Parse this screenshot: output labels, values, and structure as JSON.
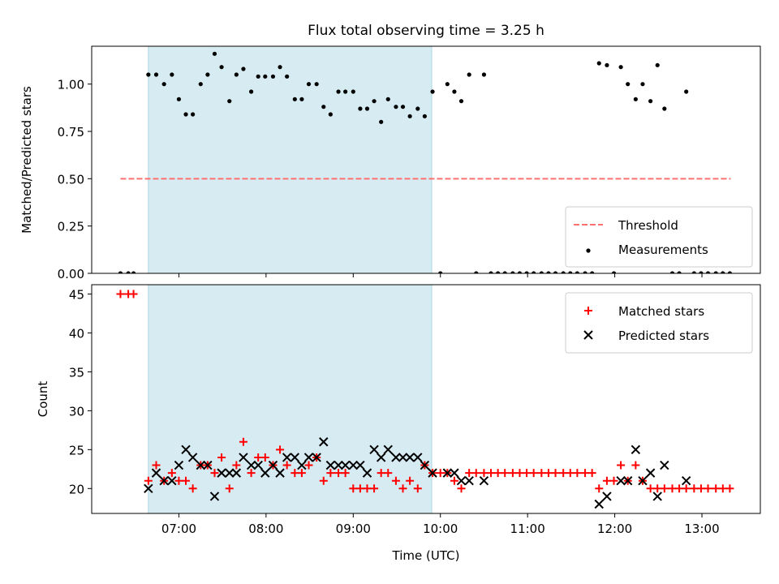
{
  "chart_data": {
    "title": "Flux total observing time = 3.25 h",
    "xlabel": "Time (UTC)",
    "x_tick_labels": [
      "07:00",
      "08:00",
      "09:00",
      "10:00",
      "11:00",
      "12:00",
      "13:00"
    ],
    "x_ticks": [
      7,
      8,
      9,
      10,
      11,
      12,
      13
    ],
    "xlim": [
      6.0,
      13.67
    ],
    "shaded_interval": [
      6.65,
      9.9
    ],
    "panels": [
      {
        "type": "scatter",
        "ylabel": "Matched/Predicted stars",
        "ylim": [
          0,
          1.2
        ],
        "y_ticks": [
          0.0,
          0.25,
          0.5,
          0.75,
          1.0
        ],
        "y_tick_labels": [
          "0.00",
          "0.25",
          "0.50",
          "0.75",
          "1.00"
        ],
        "legend_position": "lower-right",
        "threshold": {
          "name": "Threshold",
          "value": 0.5,
          "x_range": [
            6.33,
            13.33
          ],
          "color": "#ff7070"
        },
        "series": [
          {
            "name": "Measurements",
            "color": "#000000",
            "marker": "dot",
            "x": [
              6.33,
              6.42,
              6.48,
              6.65,
              6.74,
              6.83,
              6.92,
              7.0,
              7.08,
              7.16,
              7.25,
              7.33,
              7.41,
              7.49,
              7.58,
              7.66,
              7.74,
              7.83,
              7.91,
              7.99,
              8.08,
              8.16,
              8.24,
              8.33,
              8.41,
              8.49,
              8.58,
              8.66,
              8.74,
              8.83,
              8.91,
              9.0,
              9.08,
              9.16,
              9.24,
              9.32,
              9.4,
              9.49,
              9.57,
              9.65,
              9.74,
              9.82,
              9.91,
              10.0,
              10.08,
              10.16,
              10.24,
              10.33,
              10.41,
              10.5,
              10.58,
              10.66,
              10.74,
              10.83,
              10.91,
              10.99,
              11.07,
              11.16,
              11.24,
              11.32,
              11.41,
              11.49,
              11.57,
              11.66,
              11.74,
              11.82,
              11.91,
              11.99,
              12.07,
              12.15,
              12.24,
              12.32,
              12.41,
              12.49,
              12.57,
              12.66,
              12.74,
              12.82,
              12.91,
              12.99,
              13.07,
              13.16,
              13.24,
              13.32
            ],
            "y": [
              0,
              0,
              0,
              1.05,
              1.05,
              1.0,
              1.05,
              0.92,
              0.84,
              0.84,
              1.0,
              1.05,
              1.16,
              1.09,
              0.91,
              1.05,
              1.08,
              0.96,
              1.04,
              1.04,
              1.04,
              1.09,
              1.04,
              0.92,
              0.92,
              1.0,
              1.0,
              0.88,
              0.84,
              0.96,
              0.96,
              0.96,
              0.87,
              0.87,
              0.91,
              0.8,
              0.92,
              0.88,
              0.88,
              0.83,
              0.87,
              0.83,
              0.96,
              0,
              1.0,
              0.96,
              0.91,
              1.05,
              0,
              1.05,
              0,
              0,
              0,
              0,
              0,
              0,
              0,
              0,
              0,
              0,
              0,
              0,
              0,
              0,
              0,
              1.11,
              1.1,
              0,
              1.09,
              1.0,
              0.92,
              1.0,
              0.91,
              1.1,
              0.87,
              0,
              0,
              0.96,
              0,
              0,
              0,
              0,
              0,
              0
            ]
          }
        ]
      },
      {
        "type": "scatter",
        "ylabel": "Count",
        "ylim": [
          16.8,
          46.2
        ],
        "y_ticks": [
          20,
          25,
          30,
          35,
          40,
          45
        ],
        "y_tick_labels": [
          "20",
          "25",
          "30",
          "35",
          "40",
          "45"
        ],
        "legend_position": "top-right",
        "series": [
          {
            "name": "Matched stars",
            "color": "#ff0000",
            "marker": "plus",
            "x": [
              6.33,
              6.42,
              6.48,
              6.65,
              6.74,
              6.83,
              6.92,
              7.0,
              7.08,
              7.16,
              7.25,
              7.33,
              7.41,
              7.49,
              7.58,
              7.66,
              7.74,
              7.83,
              7.91,
              7.99,
              8.08,
              8.16,
              8.24,
              8.33,
              8.41,
              8.49,
              8.58,
              8.66,
              8.74,
              8.83,
              8.91,
              9.0,
              9.08,
              9.16,
              9.24,
              9.32,
              9.4,
              9.49,
              9.57,
              9.65,
              9.74,
              9.82,
              9.91,
              10.0,
              10.08,
              10.16,
              10.24,
              10.33,
              10.41,
              10.5,
              10.58,
              10.66,
              10.74,
              10.83,
              10.91,
              10.99,
              11.07,
              11.16,
              11.24,
              11.32,
              11.41,
              11.49,
              11.57,
              11.66,
              11.74,
              11.82,
              11.91,
              11.99,
              12.07,
              12.15,
              12.24,
              12.32,
              12.41,
              12.49,
              12.57,
              12.66,
              12.74,
              12.82,
              12.91,
              12.99,
              13.07,
              13.16,
              13.24,
              13.32
            ],
            "y": [
              45,
              45,
              45,
              21,
              23,
              21,
              22,
              21,
              21,
              20,
              23,
              23,
              22,
              24,
              20,
              23,
              26,
              22,
              24,
              24,
              23,
              25,
              23,
              22,
              22,
              23,
              24,
              21,
              22,
              22,
              22,
              20,
              20,
              20,
              20,
              22,
              22,
              21,
              20,
              21,
              20,
              23,
              22,
              22,
              22,
              21,
              20,
              22,
              22,
              22,
              22,
              22,
              22,
              22,
              22,
              22,
              22,
              22,
              22,
              22,
              22,
              22,
              22,
              22,
              22,
              20,
              21,
              21,
              23,
              21,
              23,
              21,
              20,
              20,
              20,
              20,
              20,
              20,
              20,
              20,
              20,
              20,
              20,
              20
            ]
          },
          {
            "name": "Predicted stars",
            "color": "#000000",
            "marker": "x",
            "x": [
              6.65,
              6.74,
              6.83,
              6.92,
              7.0,
              7.08,
              7.16,
              7.25,
              7.33,
              7.41,
              7.49,
              7.58,
              7.66,
              7.74,
              7.83,
              7.91,
              7.99,
              8.08,
              8.16,
              8.24,
              8.33,
              8.41,
              8.49,
              8.58,
              8.66,
              8.74,
              8.83,
              8.91,
              9.0,
              9.08,
              9.16,
              9.24,
              9.32,
              9.4,
              9.49,
              9.57,
              9.65,
              9.74,
              9.82,
              9.91,
              10.08,
              10.16,
              10.24,
              10.33,
              10.5,
              11.82,
              11.91,
              12.07,
              12.15,
              12.24,
              12.32,
              12.41,
              12.49,
              12.57,
              12.82
            ],
            "y": [
              20,
              22,
              21,
              21,
              23,
              25,
              24,
              23,
              23,
              19,
              22,
              22,
              22,
              24,
              23,
              23,
              22,
              23,
              22,
              24,
              24,
              23,
              24,
              24,
              26,
              23,
              23,
              23,
              23,
              23,
              22,
              25,
              24,
              25,
              24,
              24,
              24,
              24,
              23,
              22,
              22,
              22,
              21,
              21,
              21,
              18,
              19,
              21,
              21,
              25,
              21,
              22,
              19,
              23,
              21
            ]
          }
        ]
      }
    ]
  }
}
